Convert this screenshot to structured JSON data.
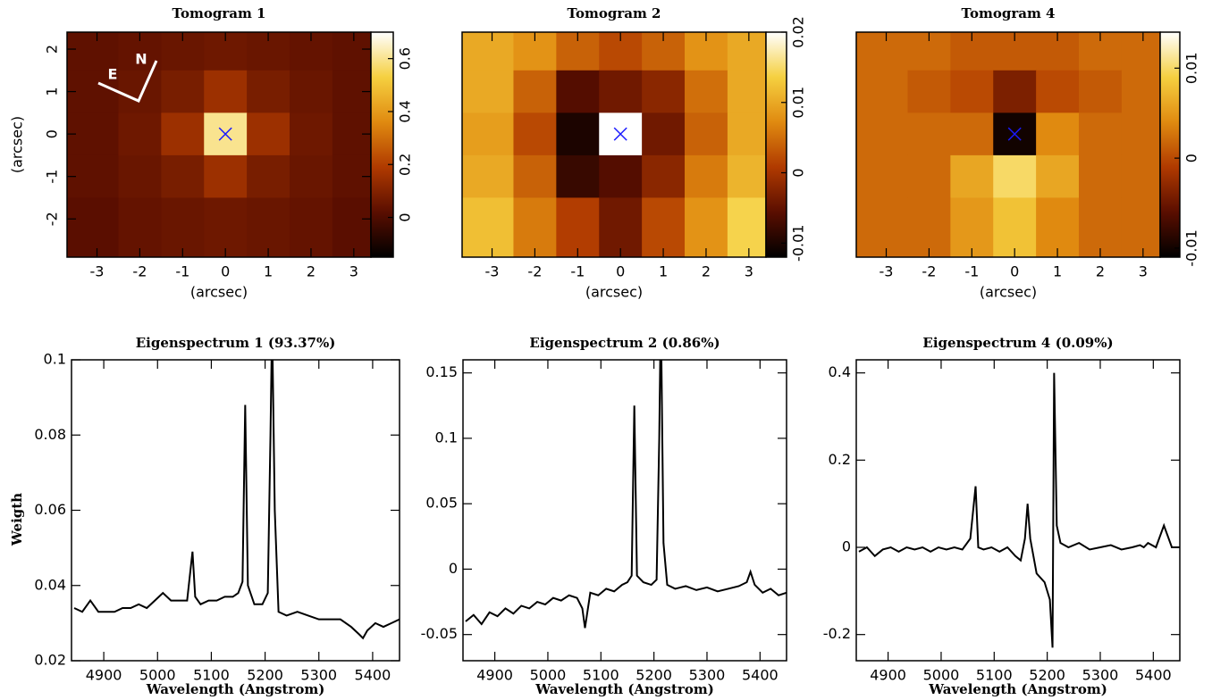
{
  "chart_data": [
    {
      "type": "heatmap",
      "title": "Tomogram 1",
      "xlabel": "(arcsec)",
      "ylabel": "(arcsec)",
      "x": [
        -3,
        -2,
        -1,
        0,
        1,
        2,
        3
      ],
      "y": [
        2,
        1,
        0,
        -1,
        -2
      ],
      "z": [
        [
          0.03,
          0.04,
          0.05,
          0.06,
          0.05,
          0.04,
          0.03
        ],
        [
          0.03,
          0.05,
          0.08,
          0.15,
          0.08,
          0.05,
          0.03
        ],
        [
          0.03,
          0.06,
          0.15,
          0.6,
          0.15,
          0.06,
          0.03
        ],
        [
          0.03,
          0.05,
          0.08,
          0.15,
          0.08,
          0.05,
          0.03
        ],
        [
          0.02,
          0.04,
          0.05,
          0.06,
          0.05,
          0.04,
          0.02
        ]
      ],
      "xlim": [
        -3.7,
        3.4
      ],
      "ylim": [
        -2.9,
        2.4
      ],
      "xticks": [
        -3,
        -2,
        -1,
        0,
        1,
        2,
        3
      ],
      "yticks": [
        -2,
        -1,
        0,
        1,
        2
      ],
      "zlim": [
        -0.15,
        0.7
      ],
      "zticks": [
        0,
        0.2,
        0.4,
        0.6
      ],
      "colormap": [
        "#000000",
        "#5a0e00",
        "#b03a00",
        "#e08a10",
        "#f5d040",
        "#ffffff"
      ],
      "marker": [
        0,
        0
      ],
      "annotations": [
        "E",
        "N"
      ]
    },
    {
      "type": "heatmap",
      "title": "Tomogram 2",
      "xlabel": "(arcsec)",
      "x": [
        -3,
        -2,
        -1,
        0,
        1,
        2,
        3
      ],
      "y": [
        2,
        1,
        0,
        -1,
        -2
      ],
      "z": [
        [
          0.01,
          0.008,
          0.004,
          0.002,
          0.004,
          0.008,
          0.01
        ],
        [
          0.01,
          0.004,
          -0.006,
          -0.004,
          -0.002,
          0.005,
          0.01
        ],
        [
          0.009,
          0.002,
          -0.01,
          0.02,
          -0.004,
          0.004,
          0.01
        ],
        [
          0.01,
          0.004,
          -0.008,
          -0.006,
          -0.002,
          0.006,
          0.011
        ],
        [
          0.012,
          0.006,
          0.001,
          -0.004,
          0.002,
          0.008,
          0.014
        ]
      ],
      "xlim": [
        -3.7,
        3.4
      ],
      "ylim": [
        -2.9,
        2.4
      ],
      "xticks": [
        -3,
        -2,
        -1,
        0,
        1,
        2,
        3
      ],
      "yticks": [],
      "zlim": [
        -0.012,
        0.02
      ],
      "zticks": [
        -0.01,
        0,
        0.01,
        0.02
      ],
      "colormap": [
        "#000000",
        "#5a0e00",
        "#b03a00",
        "#e08a10",
        "#f5d040",
        "#ffffff"
      ],
      "marker": [
        0,
        0
      ]
    },
    {
      "type": "heatmap",
      "title": "Tomogram 4",
      "xlabel": "(arcsec)",
      "x": [
        -3,
        -2,
        -1,
        0,
        1,
        2,
        3
      ],
      "y": [
        2,
        1,
        0,
        -1,
        -2
      ],
      "z": [
        [
          0.002,
          0.002,
          0.001,
          0.001,
          0.001,
          0.002,
          0.002
        ],
        [
          0.002,
          0.001,
          0.0,
          -0.004,
          0.0,
          0.001,
          0.002
        ],
        [
          0.002,
          0.002,
          0.002,
          -0.01,
          0.004,
          0.002,
          0.002
        ],
        [
          0.002,
          0.002,
          0.006,
          0.01,
          0.006,
          0.002,
          0.002
        ],
        [
          0.002,
          0.002,
          0.005,
          0.008,
          0.004,
          0.002,
          0.002
        ]
      ],
      "xlim": [
        -3.7,
        3.4
      ],
      "ylim": [
        -2.9,
        2.4
      ],
      "xticks": [
        -3,
        -2,
        -1,
        0,
        1,
        2,
        3
      ],
      "yticks": [],
      "zlim": [
        -0.011,
        0.014
      ],
      "zticks": [
        -0.01,
        0,
        0.01
      ],
      "colormap": [
        "#000000",
        "#5a0e00",
        "#b03a00",
        "#e08a10",
        "#f5d040",
        "#ffffff"
      ],
      "marker": [
        0,
        0
      ]
    },
    {
      "type": "line",
      "title": "Eigenspectrum 1 (93.37%)",
      "xlabel": "Wavelength (Angstrom)",
      "ylabel": "Weigth",
      "color": "#000000",
      "x": [
        4845,
        4860,
        4875,
        4890,
        4905,
        4920,
        4935,
        4950,
        4965,
        4980,
        4995,
        5010,
        5025,
        5040,
        5055,
        5065,
        5070,
        5080,
        5095,
        5110,
        5125,
        5140,
        5150,
        5158,
        5163,
        5168,
        5180,
        5195,
        5205,
        5210,
        5213,
        5218,
        5225,
        5240,
        5260,
        5280,
        5300,
        5320,
        5340,
        5360,
        5375,
        5382,
        5390,
        5405,
        5420,
        5435,
        5450
      ],
      "values": [
        0.034,
        0.033,
        0.036,
        0.033,
        0.033,
        0.033,
        0.034,
        0.034,
        0.035,
        0.034,
        0.036,
        0.038,
        0.036,
        0.036,
        0.036,
        0.049,
        0.037,
        0.035,
        0.036,
        0.036,
        0.037,
        0.037,
        0.038,
        0.041,
        0.088,
        0.04,
        0.035,
        0.035,
        0.038,
        0.08,
        0.11,
        0.06,
        0.033,
        0.032,
        0.033,
        0.032,
        0.031,
        0.031,
        0.031,
        0.029,
        0.027,
        0.026,
        0.028,
        0.03,
        0.029,
        0.03,
        0.031
      ],
      "xlim": [
        4840,
        5450
      ],
      "ylim": [
        0.02,
        0.1
      ],
      "xticks": [
        4900,
        5000,
        5100,
        5200,
        5300,
        5400
      ],
      "yticks": [
        0.02,
        0.04,
        0.06,
        0.08,
        0.1
      ]
    },
    {
      "type": "line",
      "title": "Eigenspectrum 2 (0.86%)",
      "xlabel": "Wavelength (Angstrom)",
      "color": "#000000",
      "x": [
        4845,
        4860,
        4875,
        4890,
        4905,
        4920,
        4935,
        4950,
        4965,
        4980,
        4995,
        5010,
        5025,
        5040,
        5055,
        5065,
        5070,
        5080,
        5095,
        5110,
        5125,
        5140,
        5150,
        5158,
        5163,
        5168,
        5180,
        5195,
        5205,
        5210,
        5213,
        5218,
        5225,
        5240,
        5260,
        5280,
        5300,
        5320,
        5340,
        5360,
        5375,
        5382,
        5390,
        5405,
        5420,
        5435,
        5450
      ],
      "values": [
        -0.04,
        -0.035,
        -0.042,
        -0.033,
        -0.036,
        -0.03,
        -0.034,
        -0.028,
        -0.03,
        -0.025,
        -0.027,
        -0.022,
        -0.024,
        -0.02,
        -0.022,
        -0.03,
        -0.045,
        -0.018,
        -0.02,
        -0.015,
        -0.017,
        -0.012,
        -0.01,
        -0.005,
        0.125,
        -0.005,
        -0.01,
        -0.012,
        -0.008,
        0.1,
        0.2,
        0.02,
        -0.012,
        -0.015,
        -0.013,
        -0.016,
        -0.014,
        -0.017,
        -0.015,
        -0.013,
        -0.01,
        -0.002,
        -0.012,
        -0.018,
        -0.015,
        -0.02,
        -0.018
      ],
      "xlim": [
        4840,
        5450
      ],
      "ylim": [
        -0.07,
        0.16
      ],
      "xticks": [
        4900,
        5000,
        5100,
        5200,
        5300,
        5400
      ],
      "yticks": [
        -0.05,
        0,
        0.05,
        0.1,
        0.15
      ]
    },
    {
      "type": "line",
      "title": "Eigenspectrum 4 (0.09%)",
      "xlabel": "Wavelength (Angstrom)",
      "color": "#000000",
      "x": [
        4845,
        4860,
        4875,
        4890,
        4905,
        4920,
        4935,
        4950,
        4965,
        4980,
        4995,
        5010,
        5025,
        5040,
        5055,
        5065,
        5070,
        5080,
        5095,
        5110,
        5125,
        5140,
        5150,
        5158,
        5163,
        5168,
        5180,
        5195,
        5205,
        5210,
        5213,
        5218,
        5225,
        5240,
        5260,
        5280,
        5300,
        5320,
        5340,
        5360,
        5375,
        5382,
        5390,
        5405,
        5420,
        5435,
        5450
      ],
      "values": [
        -0.01,
        0.0,
        -0.02,
        -0.005,
        0.0,
        -0.01,
        0.0,
        -0.005,
        0.0,
        -0.01,
        0.0,
        -0.005,
        0.0,
        -0.005,
        0.02,
        0.14,
        0.0,
        -0.005,
        0.0,
        -0.01,
        0.0,
        -0.02,
        -0.03,
        0.02,
        0.1,
        0.02,
        -0.06,
        -0.08,
        -0.12,
        -0.23,
        0.4,
        0.05,
        0.01,
        0.0,
        0.01,
        -0.005,
        0.0,
        0.005,
        -0.005,
        0.0,
        0.005,
        0.0,
        0.01,
        0.0,
        0.05,
        0.0,
        0.0
      ],
      "xlim": [
        4840,
        5450
      ],
      "ylim": [
        -0.26,
        0.43
      ],
      "xticks": [
        4900,
        5000,
        5100,
        5200,
        5300,
        5400
      ],
      "yticks": [
        -0.2,
        0,
        0.2,
        0.4
      ]
    }
  ]
}
